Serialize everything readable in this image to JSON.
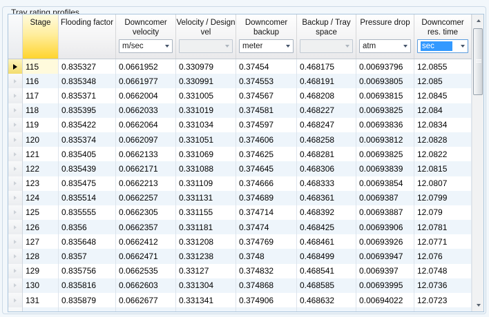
{
  "group_title": "Tray rating profiles",
  "table": {
    "columns": [
      {
        "key": "stage",
        "label": "Stage",
        "highlight": true,
        "unit": null
      },
      {
        "key": "flooding",
        "label": "Flooding factor",
        "highlight": false,
        "unit": null
      },
      {
        "key": "dc_velocity",
        "label": "Downcomer velocity",
        "highlight": false,
        "unit": {
          "value": "m/sec",
          "enabled": true,
          "focused": false
        }
      },
      {
        "key": "vel_design",
        "label": "Velocity / Design vel",
        "highlight": false,
        "unit": {
          "value": "",
          "enabled": false,
          "focused": false
        }
      },
      {
        "key": "dc_backup",
        "label": "Downcomer backup",
        "highlight": false,
        "unit": {
          "value": "meter",
          "enabled": true,
          "focused": false
        }
      },
      {
        "key": "backup_tray",
        "label": "Backup / Tray space",
        "highlight": false,
        "unit": {
          "value": "",
          "enabled": false,
          "focused": false
        }
      },
      {
        "key": "press_drop",
        "label": "Pressure drop",
        "highlight": false,
        "unit": {
          "value": "atm",
          "enabled": true,
          "focused": false
        }
      },
      {
        "key": "res_time",
        "label": "Downcomer res. time",
        "highlight": false,
        "unit": {
          "value": "sec",
          "enabled": true,
          "focused": true
        }
      }
    ],
    "current_row_stage": "115",
    "rows": [
      [
        "115",
        "0.835327",
        "0.0661952",
        "0.330979",
        "0.37454",
        "0.468175",
        "0.00693796",
        "12.0855"
      ],
      [
        "116",
        "0.835348",
        "0.0661977",
        "0.330991",
        "0.374553",
        "0.468191",
        "0.00693805",
        "12.085"
      ],
      [
        "117",
        "0.835371",
        "0.0662004",
        "0.331005",
        "0.374567",
        "0.468208",
        "0.00693815",
        "12.0845"
      ],
      [
        "118",
        "0.835395",
        "0.0662033",
        "0.331019",
        "0.374581",
        "0.468227",
        "0.00693825",
        "12.084"
      ],
      [
        "119",
        "0.835422",
        "0.0662064",
        "0.331034",
        "0.374597",
        "0.468247",
        "0.00693836",
        "12.0834"
      ],
      [
        "120",
        "0.835374",
        "0.0662097",
        "0.331051",
        "0.374606",
        "0.468258",
        "0.00693812",
        "12.0828"
      ],
      [
        "121",
        "0.835405",
        "0.0662133",
        "0.331069",
        "0.374625",
        "0.468281",
        "0.00693825",
        "12.0822"
      ],
      [
        "122",
        "0.835439",
        "0.0662171",
        "0.331088",
        "0.374645",
        "0.468306",
        "0.00693839",
        "12.0815"
      ],
      [
        "123",
        "0.835475",
        "0.0662213",
        "0.331109",
        "0.374666",
        "0.468333",
        "0.00693854",
        "12.0807"
      ],
      [
        "124",
        "0.835514",
        "0.0662257",
        "0.331131",
        "0.374689",
        "0.468361",
        "0.0069387",
        "12.0799"
      ],
      [
        "125",
        "0.835555",
        "0.0662305",
        "0.331155",
        "0.374714",
        "0.468392",
        "0.00693887",
        "12.079"
      ],
      [
        "126",
        "0.8356",
        "0.0662357",
        "0.331181",
        "0.37474",
        "0.468425",
        "0.00693906",
        "12.0781"
      ],
      [
        "127",
        "0.835648",
        "0.0662412",
        "0.331208",
        "0.374769",
        "0.468461",
        "0.00693926",
        "12.0771"
      ],
      [
        "128",
        "0.8357",
        "0.0662471",
        "0.331238",
        "0.3748",
        "0.468499",
        "0.00693947",
        "12.076"
      ],
      [
        "129",
        "0.835756",
        "0.0662535",
        "0.33127",
        "0.374832",
        "0.468541",
        "0.0069397",
        "12.0748"
      ],
      [
        "130",
        "0.835816",
        "0.0662603",
        "0.331304",
        "0.374868",
        "0.468585",
        "0.00693995",
        "12.0736"
      ],
      [
        "131",
        "0.835879",
        "0.0662677",
        "0.331341",
        "0.374906",
        "0.468632",
        "0.00694022",
        "12.0723"
      ],
      [
        "132",
        "0.835948",
        "0.0662755",
        "0.33138",
        "0.374946",
        "0.468683",
        "0.0069405",
        "12.0708"
      ]
    ]
  },
  "icons": {
    "current_row_marker": "black-right-triangle",
    "row_marker": "gray-right-triangle",
    "combo_arrow": "triangle-down",
    "scroll_up": "triangle-up",
    "scroll_down": "triangle-down"
  },
  "colors": {
    "stage_header_top": "#fffbe0",
    "stage_header_bottom": "#ffd42e",
    "selection_blue": "#3399ff",
    "alt_row": "#eef5fb",
    "current_stage_cell": "#fffadc",
    "grid_border": "#a9c4dc"
  }
}
